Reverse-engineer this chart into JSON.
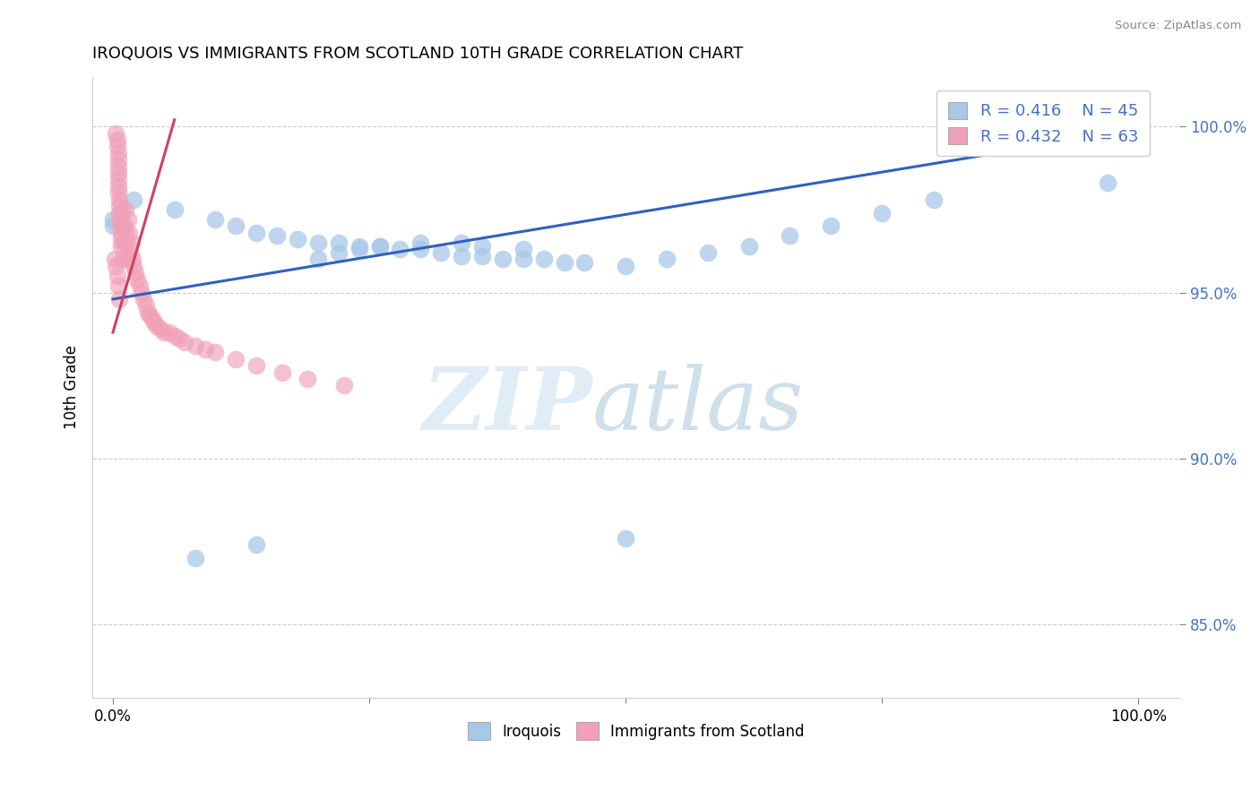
{
  "title": "IROQUOIS VS IMMIGRANTS FROM SCOTLAND 10TH GRADE CORRELATION CHART",
  "source": "Source: ZipAtlas.com",
  "ylabel": "10th Grade",
  "xlim": [
    -0.02,
    1.04
  ],
  "ylim": [
    0.828,
    1.015
  ],
  "ytick_values": [
    0.85,
    0.9,
    0.95,
    1.0
  ],
  "ytick_labels": [
    "85.0%",
    "90.0%",
    "95.0%",
    "100.0%"
  ],
  "xtick_values": [
    0.0,
    1.0
  ],
  "xtick_labels": [
    "0.0%",
    "100.0%"
  ],
  "blue_color": "#a8c8e8",
  "pink_color": "#f0a0b8",
  "blue_line_color": "#3060c0",
  "pink_line_color": "#d04060",
  "legend_R1": "R = 0.416",
  "legend_N1": "N = 45",
  "legend_R2": "R = 0.432",
  "legend_N2": "N = 63",
  "blue_line": [
    [
      0.0,
      0.948
    ],
    [
      1.0,
      0.999
    ]
  ],
  "pink_line": [
    [
      0.0,
      0.938
    ],
    [
      0.06,
      1.002
    ]
  ],
  "blue_x": [
    0.0,
    0.0,
    0.02,
    0.06,
    0.1,
    0.12,
    0.14,
    0.16,
    0.18,
    0.2,
    0.22,
    0.24,
    0.26,
    0.28,
    0.3,
    0.32,
    0.34,
    0.36,
    0.38,
    0.4,
    0.42,
    0.44,
    0.46,
    0.5,
    0.54,
    0.58,
    0.62,
    0.66,
    0.7,
    0.75,
    0.8,
    0.97,
    1.0,
    1.0,
    0.08,
    0.14,
    0.2,
    0.22,
    0.24,
    0.26,
    0.3,
    0.34,
    0.36,
    0.4,
    0.5
  ],
  "blue_y": [
    0.97,
    0.972,
    0.978,
    0.975,
    0.972,
    0.97,
    0.968,
    0.967,
    0.966,
    0.965,
    0.965,
    0.964,
    0.964,
    0.963,
    0.963,
    0.962,
    0.961,
    0.961,
    0.96,
    0.96,
    0.96,
    0.959,
    0.959,
    0.958,
    0.96,
    0.962,
    0.964,
    0.967,
    0.97,
    0.974,
    0.978,
    0.983,
    0.998,
    0.999,
    0.87,
    0.874,
    0.96,
    0.962,
    0.963,
    0.964,
    0.965,
    0.965,
    0.964,
    0.963,
    0.876
  ],
  "pink_x": [
    0.003,
    0.004,
    0.004,
    0.005,
    0.005,
    0.005,
    0.005,
    0.005,
    0.005,
    0.005,
    0.006,
    0.006,
    0.006,
    0.007,
    0.007,
    0.008,
    0.008,
    0.008,
    0.009,
    0.009,
    0.01,
    0.01,
    0.011,
    0.012,
    0.012,
    0.013,
    0.014,
    0.015,
    0.016,
    0.017,
    0.018,
    0.019,
    0.02,
    0.022,
    0.024,
    0.026,
    0.028,
    0.03,
    0.032,
    0.034,
    0.036,
    0.038,
    0.04,
    0.043,
    0.046,
    0.05,
    0.055,
    0.06,
    0.065,
    0.07,
    0.08,
    0.09,
    0.1,
    0.12,
    0.14,
    0.165,
    0.19,
    0.225,
    0.002,
    0.003,
    0.004,
    0.005,
    0.006
  ],
  "pink_y": [
    0.998,
    0.996,
    0.994,
    0.992,
    0.99,
    0.988,
    0.986,
    0.984,
    0.982,
    0.98,
    0.978,
    0.976,
    0.974,
    0.972,
    0.97,
    0.968,
    0.966,
    0.964,
    0.975,
    0.97,
    0.965,
    0.96,
    0.97,
    0.975,
    0.968,
    0.965,
    0.96,
    0.972,
    0.968,
    0.962,
    0.965,
    0.96,
    0.958,
    0.956,
    0.954,
    0.952,
    0.95,
    0.948,
    0.946,
    0.944,
    0.943,
    0.942,
    0.941,
    0.94,
    0.939,
    0.938,
    0.938,
    0.937,
    0.936,
    0.935,
    0.934,
    0.933,
    0.932,
    0.93,
    0.928,
    0.926,
    0.924,
    0.922,
    0.96,
    0.958,
    0.955,
    0.952,
    0.948
  ]
}
